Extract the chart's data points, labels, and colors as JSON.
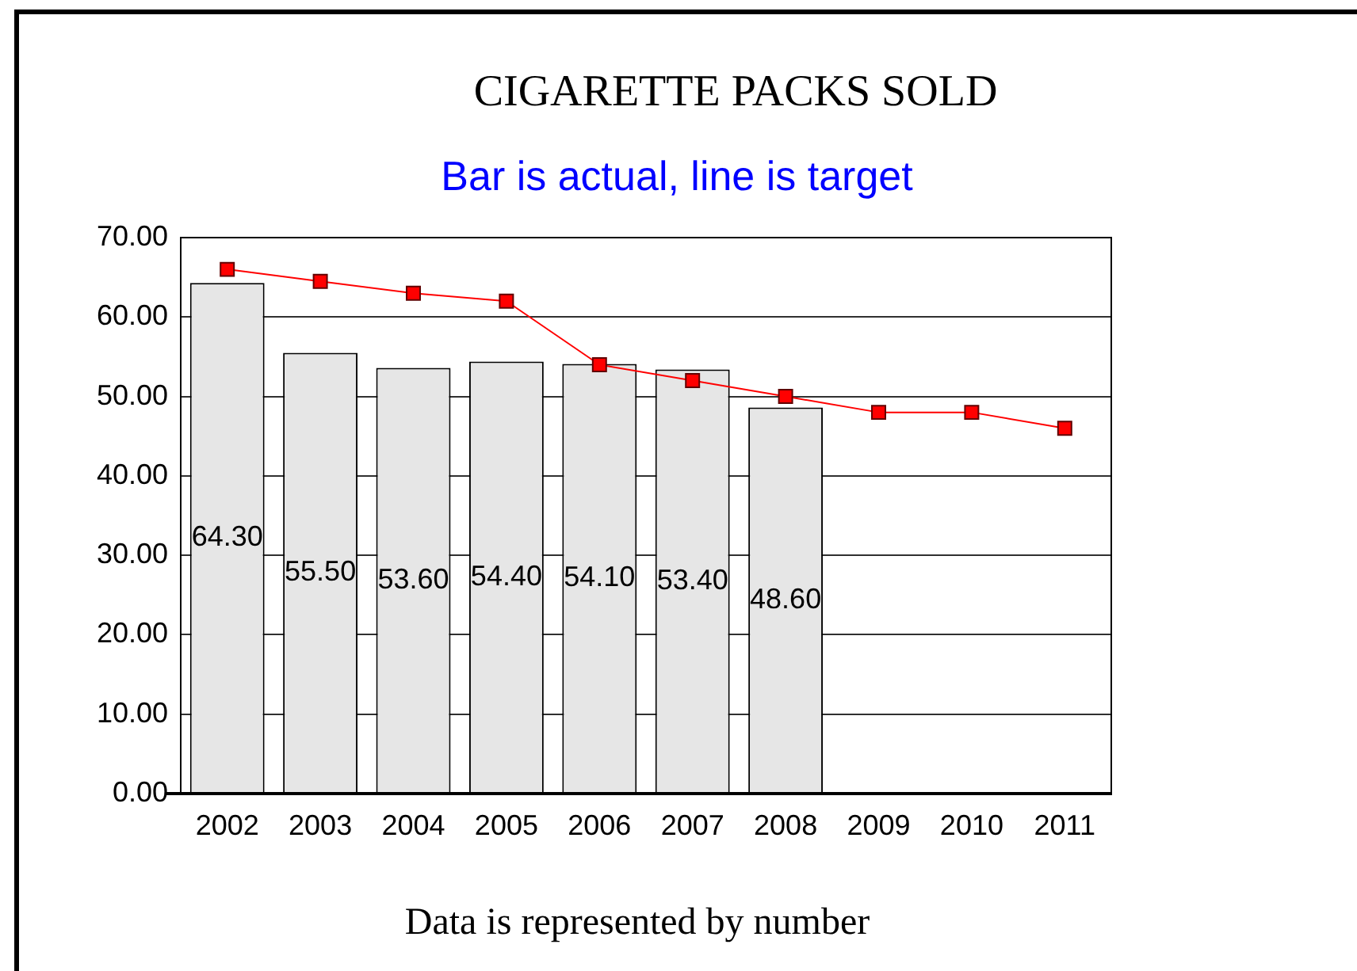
{
  "chart_data": {
    "type": "bar",
    "title": "CIGARETTE PACKS SOLD",
    "subtitle": "Bar is actual, line is target",
    "annotations": [
      "Data is represented by number"
    ],
    "categories": [
      "2002",
      "2003",
      "2004",
      "2005",
      "2006",
      "2007",
      "2008",
      "2009",
      "2010",
      "2011"
    ],
    "series": [
      {
        "color": "#e6e6e6",
        "values": [
          64.3,
          55.5,
          53.6,
          54.4,
          54.1,
          53.4,
          48.6,
          null,
          null,
          null
        ],
        "value_labels": [
          "64.30",
          "55.50",
          "53.60",
          "54.40",
          "54.10",
          "53.40",
          "48.60",
          null,
          null,
          null
        ]
      },
      {
        "type": "line",
        "color": "#ff0000",
        "values": [
          66,
          64.5,
          63,
          62,
          54,
          52,
          50,
          48,
          48,
          46
        ]
      }
    ],
    "ylim": [
      0,
      70
    ],
    "yticks": [
      {
        "value": 0,
        "label": "0.00"
      },
      {
        "value": 10,
        "label": "10.00"
      },
      {
        "value": 20,
        "label": "20.00"
      },
      {
        "value": 30,
        "label": "30.00"
      },
      {
        "value": 40,
        "label": "40.00"
      },
      {
        "value": 50,
        "label": "50.00"
      },
      {
        "value": 60,
        "label": "60.00"
      },
      {
        "value": 70,
        "label": "70.00"
      }
    ],
    "grid": "y",
    "legend": false,
    "marker": "square",
    "line_style": "solid"
  }
}
